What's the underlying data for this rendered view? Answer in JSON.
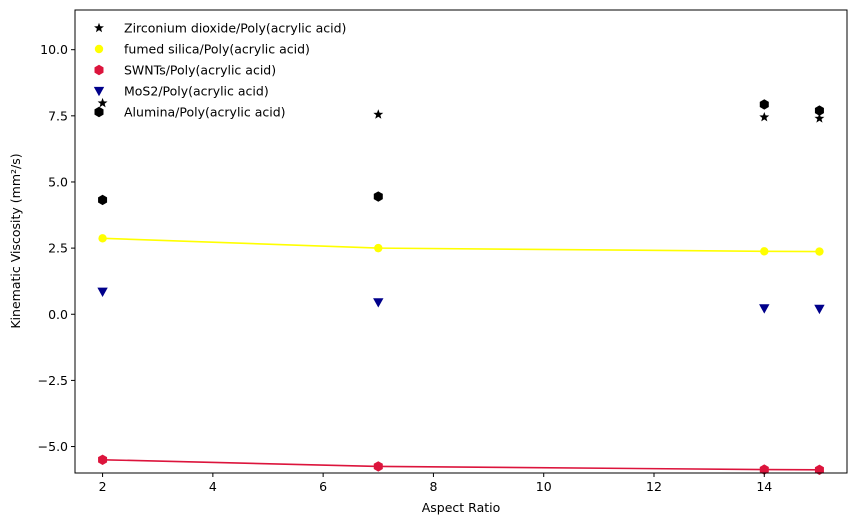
{
  "chart_data": {
    "type": "scatter",
    "title": "",
    "xlabel": "Aspect Ratio",
    "ylabel": "Kinematic Viscosity (mm²/s)",
    "xlim": [
      1.5,
      15.5
    ],
    "ylim": [
      -6.0,
      11.5
    ],
    "xticks": [
      2,
      4,
      6,
      8,
      10,
      12,
      14
    ],
    "xtick_labels": [
      "2",
      "4",
      "6",
      "8",
      "10",
      "12",
      "14"
    ],
    "yticks": [
      -5.0,
      -2.5,
      0.0,
      2.5,
      5.0,
      7.5,
      10.0
    ],
    "ytick_labels": [
      "−5.0",
      "−2.5",
      "0.0",
      "2.5",
      "5.0",
      "7.5",
      "10.0"
    ],
    "grid": false,
    "legend_position": "top-left",
    "x": [
      2,
      7,
      14,
      15
    ],
    "series": [
      {
        "name": "Zirconium dioxide/Poly(acrylic acid)",
        "values": [
          7.98,
          7.55,
          7.45,
          7.4
        ],
        "color": "#000000",
        "marker": "star",
        "line": false
      },
      {
        "name": "fumed silica/Poly(acrylic acid)",
        "values": [
          2.87,
          2.5,
          2.38,
          2.37
        ],
        "color": "#ffff00",
        "marker": "circle",
        "line": true
      },
      {
        "name": "SWNTs/Poly(acrylic acid)",
        "values": [
          -5.5,
          -5.75,
          -5.87,
          -5.88
        ],
        "color": "#dc143c",
        "marker": "hexagon",
        "line": true
      },
      {
        "name": "MoS2/Poly(acrylic acid)",
        "values": [
          0.85,
          0.45,
          0.22,
          0.2
        ],
        "color": "#00008b",
        "marker": "triangle-down",
        "line": false
      },
      {
        "name": "Alumina/Poly(acrylic acid)",
        "values": [
          4.32,
          4.45,
          7.93,
          7.7
        ],
        "color": "#000000",
        "marker": "hexagon",
        "line": false
      }
    ]
  }
}
